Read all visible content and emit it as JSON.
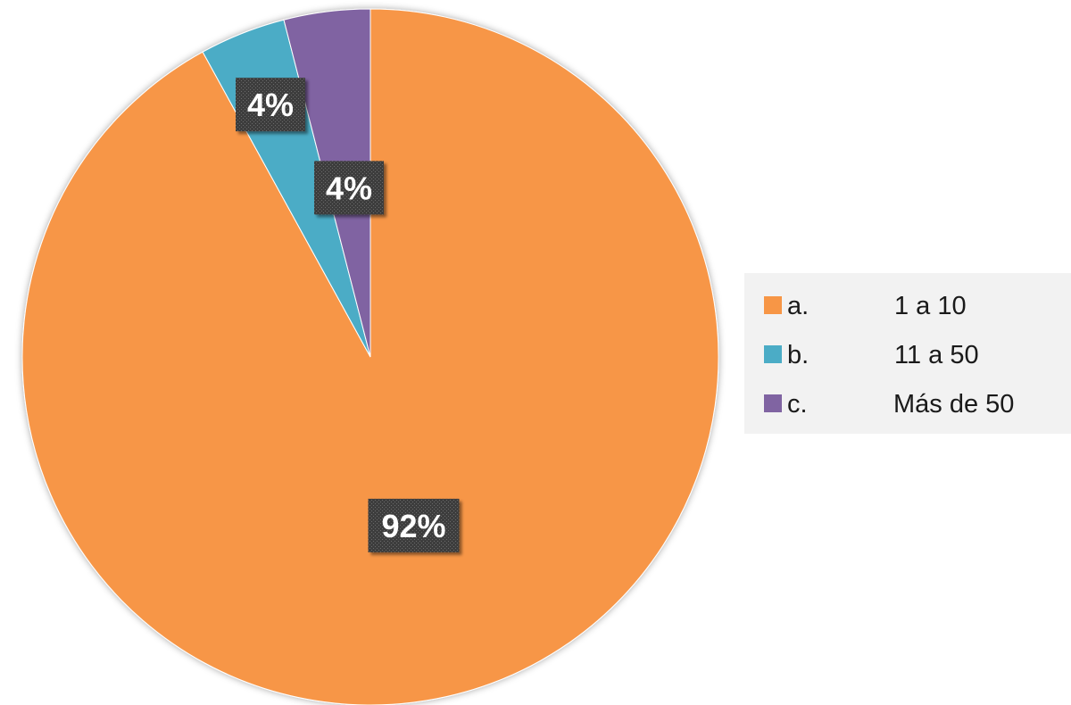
{
  "chart_data": {
    "type": "pie",
    "title": "",
    "categories": [
      "a.      1 a 10",
      "b.      11 a 50",
      "c.      Más de 50"
    ],
    "legend_markers": [
      "a.",
      "b.",
      "c."
    ],
    "legend_texts": [
      "1 a 10",
      "11 a 50",
      "Más de 50"
    ],
    "values": [
      92,
      4,
      4
    ],
    "data_labels": [
      "92%",
      "4%",
      "4%"
    ],
    "colors": [
      "#F79646",
      "#4BACC6",
      "#8064A2"
    ],
    "label_background": "#404040",
    "legend_position": "right",
    "start_angle_deg": 0,
    "direction": "clockwise"
  }
}
